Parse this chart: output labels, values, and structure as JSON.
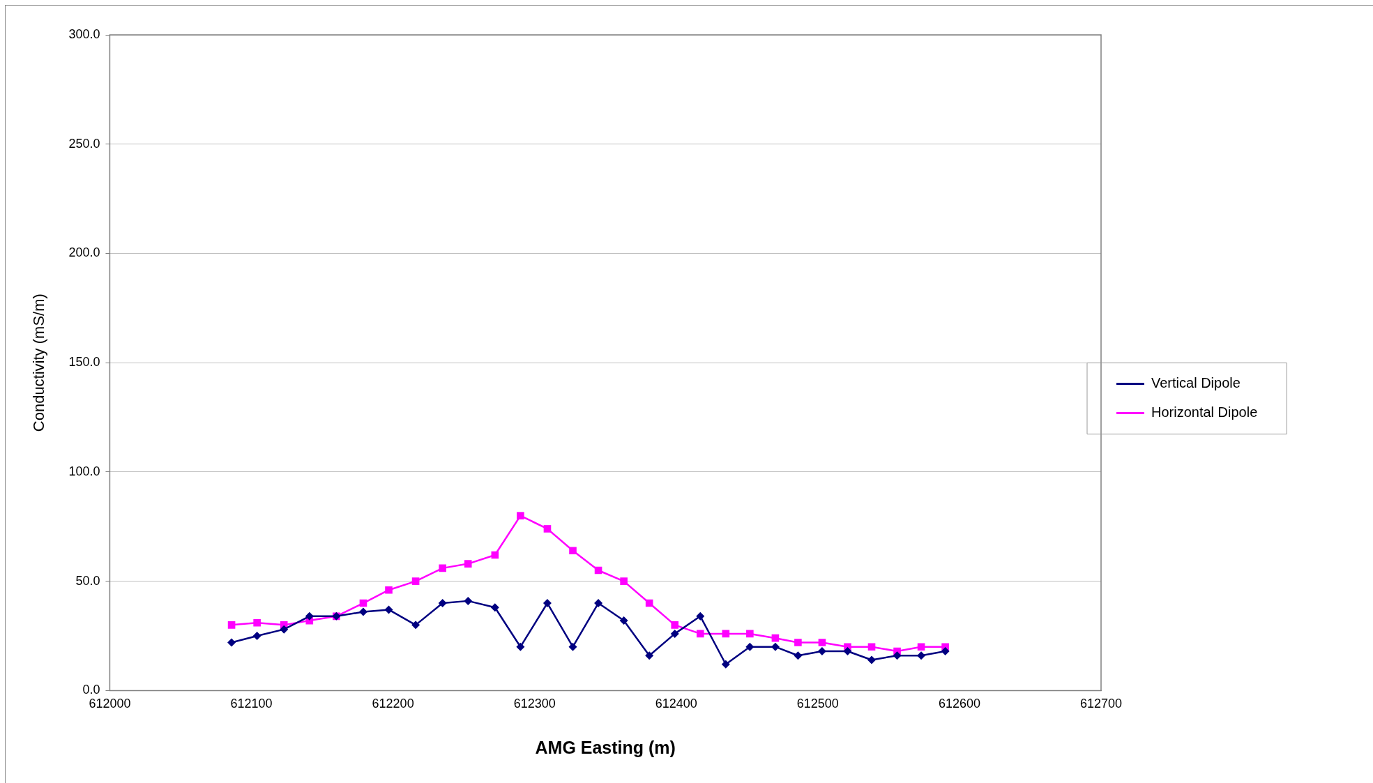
{
  "chart_data": {
    "type": "line",
    "xlabel": "AMG Easting (m)",
    "ylabel": "Conductivity (mS/m)",
    "x": [
      612086,
      612104,
      612123,
      612141,
      612160,
      612179,
      612197,
      612216,
      612235,
      612253,
      612272,
      612290,
      612309,
      612327,
      612345,
      612363,
      612381,
      612399,
      612417,
      612435,
      612452,
      612470,
      612486,
      612503,
      612521,
      612538,
      612556,
      612573,
      612590
    ],
    "series": [
      {
        "name": "Vertical Dipole",
        "color": "#000080",
        "marker": "diamond",
        "values": [
          22,
          25,
          28,
          34,
          34,
          36,
          37,
          30,
          40,
          41,
          38,
          20,
          40,
          20,
          40,
          32,
          16,
          26,
          34,
          12,
          20,
          20,
          16,
          18,
          18,
          14,
          16,
          16,
          18
        ]
      },
      {
        "name": "Horizontal Dipole",
        "color": "#ff00ff",
        "marker": "square",
        "values": [
          30,
          31,
          30,
          32,
          34,
          40,
          46,
          50,
          56,
          58,
          62,
          80,
          74,
          64,
          55,
          50,
          40,
          30,
          26,
          26,
          26,
          24,
          22,
          22,
          20,
          20,
          18,
          20,
          20
        ]
      }
    ],
    "xlim": [
      612000,
      612700
    ],
    "xticks": [
      612000,
      612100,
      612200,
      612300,
      612400,
      612500,
      612600,
      612700
    ],
    "ylim": [
      0,
      300
    ],
    "yticks": [
      {
        "value": 0,
        "label": "0.0"
      },
      {
        "value": 50,
        "label": "50.0"
      },
      {
        "value": 100,
        "label": "100.0"
      },
      {
        "value": 150,
        "label": "150.0"
      },
      {
        "value": 200,
        "label": "200.0"
      },
      {
        "value": 250,
        "label": "250.0"
      },
      {
        "value": 300,
        "label": "300.0"
      }
    ],
    "grid": "y",
    "legend": "right",
    "line_style": "solid"
  }
}
